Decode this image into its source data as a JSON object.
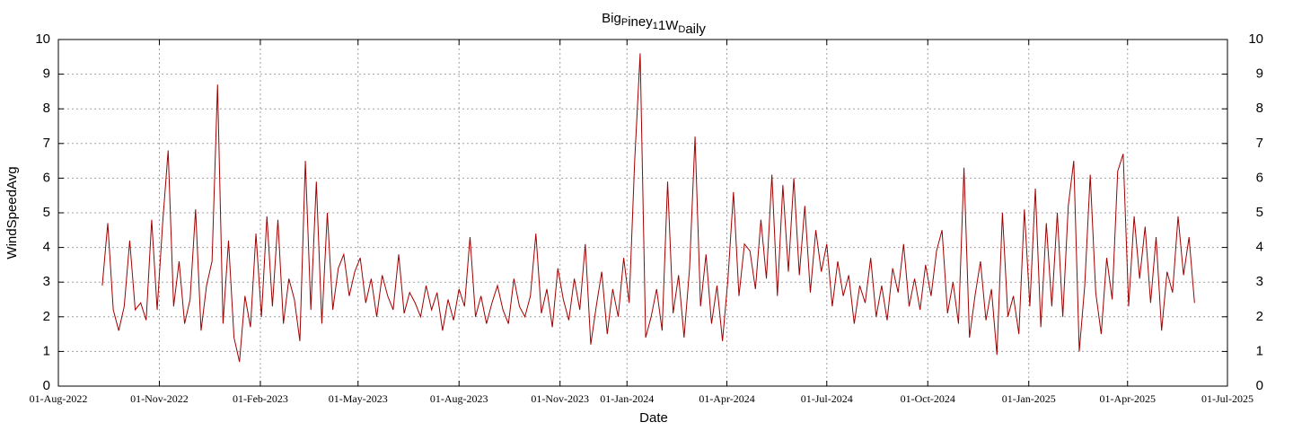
{
  "chart_data": {
    "type": "line",
    "title": "Big_Piney_11W_Daily",
    "x_label": "Date",
    "y_label": "WindSpeedAvg",
    "color": "#a00000",
    "grid": true,
    "right_axis_mirror": true,
    "xlim": [
      "2022-08-01",
      "2025-07-01"
    ],
    "xticks": [
      {
        "value": "2022-08-01",
        "label": "01-Aug-2022"
      },
      {
        "value": "2022-11-01",
        "label": "01-Nov-2022"
      },
      {
        "value": "2023-02-01",
        "label": "01-Feb-2023"
      },
      {
        "value": "2023-05-01",
        "label": "01-May-2023"
      },
      {
        "value": "2023-08-01",
        "label": "01-Aug-2023"
      },
      {
        "value": "2023-11-01",
        "label": "01-Nov-2023"
      },
      {
        "value": "2024-01-01",
        "label": "01-Jan-2024"
      },
      {
        "value": "2024-04-01",
        "label": "01-Apr-2024"
      },
      {
        "value": "2024-07-01",
        "label": "01-Jul-2024"
      },
      {
        "value": "2024-10-01",
        "label": "01-Oct-2024"
      },
      {
        "value": "2025-01-01",
        "label": "01-Jan-2025"
      },
      {
        "value": "2025-04-01",
        "label": "01-Apr-2025"
      },
      {
        "value": "2025-07-01",
        "label": "01-Jul-2025"
      }
    ],
    "ylim": [
      0,
      10
    ],
    "yticks": [
      0,
      1,
      2,
      3,
      4,
      5,
      6,
      7,
      8,
      9,
      10
    ],
    "x": [
      "2022-09-10",
      "2022-09-15",
      "2022-09-20",
      "2022-09-25",
      "2022-09-30",
      "2022-10-05",
      "2022-10-10",
      "2022-10-15",
      "2022-10-20",
      "2022-10-25",
      "2022-10-30",
      "2022-11-04",
      "2022-11-09",
      "2022-11-14",
      "2022-11-19",
      "2022-11-24",
      "2022-11-29",
      "2022-12-04",
      "2022-12-09",
      "2022-12-14",
      "2022-12-19",
      "2022-12-24",
      "2022-12-29",
      "2023-01-03",
      "2023-01-08",
      "2023-01-13",
      "2023-01-18",
      "2023-01-23",
      "2023-01-28",
      "2023-02-02",
      "2023-02-07",
      "2023-02-12",
      "2023-02-17",
      "2023-02-22",
      "2023-02-27",
      "2023-03-04",
      "2023-03-09",
      "2023-03-14",
      "2023-03-19",
      "2023-03-24",
      "2023-03-29",
      "2023-04-03",
      "2023-04-08",
      "2023-04-13",
      "2023-04-18",
      "2023-04-23",
      "2023-04-28",
      "2023-05-03",
      "2023-05-08",
      "2023-05-13",
      "2023-05-18",
      "2023-05-23",
      "2023-05-28",
      "2023-06-02",
      "2023-06-07",
      "2023-06-12",
      "2023-06-17",
      "2023-06-22",
      "2023-06-27",
      "2023-07-02",
      "2023-07-07",
      "2023-07-12",
      "2023-07-17",
      "2023-07-22",
      "2023-07-27",
      "2023-08-01",
      "2023-08-06",
      "2023-08-11",
      "2023-08-16",
      "2023-08-21",
      "2023-08-26",
      "2023-08-31",
      "2023-09-05",
      "2023-09-10",
      "2023-09-15",
      "2023-09-20",
      "2023-09-25",
      "2023-09-30",
      "2023-10-05",
      "2023-10-10",
      "2023-10-15",
      "2023-10-20",
      "2023-10-25",
      "2023-10-30",
      "2023-11-04",
      "2023-11-09",
      "2023-11-14",
      "2023-11-19",
      "2023-11-24",
      "2023-11-29",
      "2023-12-04",
      "2023-12-09",
      "2023-12-14",
      "2023-12-19",
      "2023-12-24",
      "2023-12-29",
      "2024-01-03",
      "2024-01-08",
      "2024-01-13",
      "2024-01-18",
      "2024-01-23",
      "2024-01-28",
      "2024-02-02",
      "2024-02-07",
      "2024-02-12",
      "2024-02-17",
      "2024-02-22",
      "2024-02-27",
      "2024-03-03",
      "2024-03-08",
      "2024-03-13",
      "2024-03-18",
      "2024-03-23",
      "2024-03-28",
      "2024-04-02",
      "2024-04-07",
      "2024-04-12",
      "2024-04-17",
      "2024-04-22",
      "2024-04-27",
      "2024-05-02",
      "2024-05-07",
      "2024-05-12",
      "2024-05-17",
      "2024-05-22",
      "2024-05-27",
      "2024-06-01",
      "2024-06-06",
      "2024-06-11",
      "2024-06-16",
      "2024-06-21",
      "2024-06-26",
      "2024-07-01",
      "2024-07-06",
      "2024-07-11",
      "2024-07-16",
      "2024-07-21",
      "2024-07-26",
      "2024-07-31",
      "2024-08-05",
      "2024-08-10",
      "2024-08-15",
      "2024-08-20",
      "2024-08-25",
      "2024-08-30",
      "2024-09-04",
      "2024-09-09",
      "2024-09-14",
      "2024-09-19",
      "2024-09-24",
      "2024-09-29",
      "2024-10-04",
      "2024-10-09",
      "2024-10-14",
      "2024-10-19",
      "2024-10-24",
      "2024-10-29",
      "2024-11-03",
      "2024-11-08",
      "2024-11-13",
      "2024-11-18",
      "2024-11-23",
      "2024-11-28",
      "2024-12-03",
      "2024-12-08",
      "2024-12-13",
      "2024-12-18",
      "2024-12-23",
      "2024-12-28",
      "2025-01-02",
      "2025-01-07",
      "2025-01-12",
      "2025-01-17",
      "2025-01-22",
      "2025-01-27",
      "2025-02-01",
      "2025-02-06",
      "2025-02-11",
      "2025-02-16",
      "2025-02-21",
      "2025-02-26",
      "2025-03-03",
      "2025-03-08",
      "2025-03-13",
      "2025-03-18",
      "2025-03-23",
      "2025-03-28",
      "2025-04-02",
      "2025-04-07",
      "2025-04-12",
      "2025-04-17",
      "2025-04-22",
      "2025-04-27",
      "2025-05-02",
      "2025-05-07",
      "2025-05-12",
      "2025-05-17",
      "2025-05-22",
      "2025-05-27",
      "2025-06-01"
    ],
    "values": [
      2.9,
      4.7,
      2.2,
      1.6,
      2.3,
      4.2,
      2.2,
      2.4,
      1.9,
      4.8,
      2.2,
      4.7,
      6.8,
      2.3,
      3.6,
      1.8,
      2.5,
      5.1,
      1.6,
      2.9,
      3.6,
      8.7,
      1.8,
      4.2,
      1.4,
      0.7,
      2.6,
      1.7,
      4.4,
      2.0,
      4.9,
      2.3,
      4.8,
      1.8,
      3.1,
      2.5,
      1.3,
      6.5,
      2.2,
      5.9,
      1.8,
      5.0,
      2.2,
      3.4,
      3.8,
      2.6,
      3.3,
      3.7,
      2.4,
      3.1,
      2.0,
      3.2,
      2.6,
      2.2,
      3.8,
      2.1,
      2.7,
      2.4,
      2.0,
      2.9,
      2.2,
      2.7,
      1.6,
      2.5,
      1.9,
      2.8,
      2.3,
      4.3,
      2.0,
      2.6,
      1.8,
      2.4,
      2.9,
      2.2,
      1.8,
      3.1,
      2.3,
      2.0,
      2.6,
      4.4,
      2.1,
      2.8,
      1.7,
      3.4,
      2.5,
      1.9,
      3.1,
      2.2,
      4.1,
      1.2,
      2.3,
      3.3,
      1.5,
      2.8,
      2.0,
      3.7,
      2.4,
      6.5,
      9.6,
      1.4,
      2.0,
      2.8,
      1.6,
      5.9,
      2.1,
      3.2,
      1.4,
      3.4,
      7.2,
      2.3,
      3.8,
      1.8,
      2.9,
      1.3,
      3.1,
      5.6,
      2.6,
      4.1,
      3.9,
      2.8,
      4.8,
      3.1,
      6.1,
      2.6,
      5.8,
      3.3,
      6.0,
      3.2,
      5.2,
      2.7,
      4.5,
      3.3,
      4.1,
      2.3,
      3.6,
      2.6,
      3.2,
      1.8,
      2.9,
      2.4,
      3.7,
      2.0,
      2.9,
      1.9,
      3.4,
      2.7,
      4.1,
      2.3,
      3.1,
      2.2,
      3.5,
      2.6,
      3.9,
      4.5,
      2.1,
      3.0,
      1.8,
      6.3,
      1.4,
      2.6,
      3.6,
      1.9,
      2.8,
      0.9,
      5.0,
      2.0,
      2.6,
      1.5,
      5.1,
      2.3,
      5.7,
      1.7,
      4.7,
      2.3,
      5.0,
      2.0,
      5.2,
      6.5,
      1.0,
      2.9,
      6.1,
      2.7,
      1.5,
      3.7,
      2.5,
      6.2,
      6.7,
      2.3,
      4.9,
      3.1,
      4.6,
      2.4,
      4.3,
      1.6,
      3.3,
      2.7,
      4.9,
      3.2,
      4.3,
      2.4
    ]
  }
}
